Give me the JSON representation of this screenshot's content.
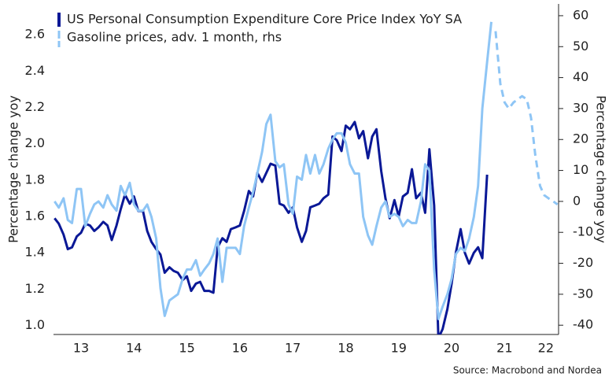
{
  "chart_data": {
    "type": "line",
    "y_label": "Percentage change yoy",
    "y2_label": "Percentage change yoy",
    "source": "Source: Macrobond and Nordea",
    "legend": "upper left",
    "x": [
      13.0,
      13.08,
      13.17,
      13.25,
      13.33,
      13.42,
      13.5,
      13.58,
      13.67,
      13.75,
      13.83,
      13.92,
      14.0,
      14.08,
      14.17,
      14.25,
      14.33,
      14.42,
      14.5,
      14.58,
      14.67,
      14.75,
      14.83,
      14.92,
      15.0,
      15.08,
      15.17,
      15.25,
      15.33,
      15.42,
      15.5,
      15.58,
      15.67,
      15.75,
      15.83,
      15.92,
      16.0,
      16.08,
      16.17,
      16.25,
      16.33,
      16.42,
      16.5,
      16.58,
      16.67,
      16.75,
      16.83,
      16.92,
      17.0,
      17.08,
      17.17,
      17.25,
      17.33,
      17.42,
      17.5,
      17.58,
      17.67,
      17.75,
      17.83,
      17.92,
      18.0,
      18.08,
      18.17,
      18.25,
      18.33,
      18.42,
      18.5,
      18.58,
      18.67,
      18.75,
      18.83,
      18.92,
      19.0,
      19.08,
      19.17,
      19.25,
      19.33,
      19.42,
      19.5,
      19.58,
      19.67,
      19.75,
      19.83,
      19.92,
      20.0,
      20.08,
      20.17,
      20.25,
      20.33,
      20.42,
      20.5,
      20.58,
      20.67,
      20.75,
      20.83,
      20.92,
      21.0,
      21.08,
      21.17,
      21.25
    ],
    "series": [
      {
        "name": "US Personal Consumption Expenditure Core Price Index YoY SA",
        "color": "#0a1896",
        "axis": "y",
        "values": [
          1.59,
          1.56,
          1.5,
          1.42,
          1.43,
          1.49,
          1.51,
          1.56,
          1.55,
          1.52,
          1.54,
          1.57,
          1.55,
          1.47,
          1.55,
          1.64,
          1.72,
          1.67,
          1.71,
          1.63,
          1.63,
          1.52,
          1.46,
          1.42,
          1.39,
          1.29,
          1.32,
          1.3,
          1.29,
          1.25,
          1.27,
          1.19,
          1.23,
          1.24,
          1.19,
          1.19,
          1.18,
          1.43,
          1.48,
          1.46,
          1.53,
          1.54,
          1.55,
          1.63,
          1.74,
          1.71,
          1.84,
          1.79,
          1.84,
          1.89,
          1.88,
          1.67,
          1.66,
          1.62,
          1.65,
          1.54,
          1.46,
          1.52,
          1.65,
          1.66,
          1.67,
          1.7,
          1.72,
          2.04,
          2.02,
          1.96,
          2.1,
          2.08,
          2.12,
          2.03,
          2.07,
          1.92,
          2.04,
          2.08,
          1.85,
          1.7,
          1.59,
          1.69,
          1.6,
          1.71,
          1.73,
          1.86,
          1.7,
          1.73,
          1.62,
          1.97,
          1.66,
          0.93,
          0.98,
          1.09,
          1.23,
          1.4,
          1.53,
          1.4,
          1.34,
          1.4,
          1.43,
          1.37,
          1.83,
          null
        ]
      },
      {
        "name": "Gasoline prices, adv. 1 month, rhs",
        "color": "#8ec5f5",
        "axis": "y2",
        "values": [
          0,
          -2,
          1,
          -6,
          -7,
          4,
          4,
          -8,
          -4,
          -1,
          0,
          -2,
          2,
          -1,
          -3,
          5,
          2,
          6,
          -1,
          -3,
          -3,
          -1,
          -5,
          -12,
          -28,
          -37,
          -32,
          -31,
          -30,
          -25,
          -22,
          -22,
          -19,
          -24,
          -22,
          -20,
          -17,
          -12,
          -26,
          -15,
          -15,
          -15,
          -17,
          -8,
          -2,
          3,
          9,
          16,
          25,
          28,
          13,
          11,
          12,
          -1,
          -4,
          8,
          7,
          15,
          9,
          15,
          9,
          12,
          17,
          20,
          22,
          22,
          19,
          12,
          9,
          9,
          -5,
          -11,
          -14,
          -8,
          -2,
          0,
          -5,
          -4,
          -5,
          -8,
          -6,
          -7,
          -7,
          0,
          12,
          10,
          -22,
          -38,
          -34,
          -30,
          -25,
          -17,
          -15,
          -16,
          -12,
          -5,
          5,
          30,
          45,
          58
        ],
        "forecast_x": [
          21.33,
          21.42,
          21.5,
          21.58,
          21.67,
          21.75,
          21.83,
          21.92,
          22.0,
          22.08,
          22.17,
          22.25,
          22.33,
          22.42,
          22.5
        ],
        "forecast_values": [
          55,
          38,
          32,
          30,
          32,
          33,
          34,
          33,
          27,
          15,
          5,
          2,
          1,
          0,
          -1
        ]
      }
    ],
    "xlim": [
      12.98,
      22.52
    ],
    "xticks": [
      {
        "value": 13.5,
        "label": "13"
      },
      {
        "value": 14.5,
        "label": "14"
      },
      {
        "value": 15.5,
        "label": "15"
      },
      {
        "value": 16.5,
        "label": "16"
      },
      {
        "value": 17.5,
        "label": "17"
      },
      {
        "value": 18.5,
        "label": "18"
      },
      {
        "value": 19.5,
        "label": "19"
      },
      {
        "value": 20.5,
        "label": "20"
      },
      {
        "value": 21.5,
        "label": "21"
      },
      {
        "value": 22.28,
        "label": "22"
      }
    ],
    "ylim": [
      0.95,
      2.77
    ],
    "yticks": [
      {
        "value": 1.0,
        "label": "1.0"
      },
      1.2,
      1.4,
      1.6,
      1.8,
      {
        "value": 2.0,
        "label": "2.0"
      },
      2.2,
      2.4,
      2.6
    ],
    "y2lim": [
      -43,
      63.8
    ],
    "y2ticks": [
      -40,
      -30,
      -20,
      -10,
      0,
      10,
      20,
      30,
      40,
      50,
      60
    ]
  }
}
